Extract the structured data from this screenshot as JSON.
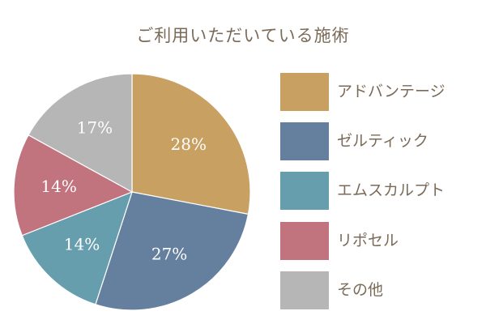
{
  "title": "ご利用いただいている施術",
  "chart_data": {
    "type": "pie",
    "title": "ご利用いただいている施術",
    "categories": [
      "アドバンテージ",
      "ゼルティック",
      "エムスカルプト",
      "リポセル",
      "その他"
    ],
    "values": [
      28,
      27,
      14,
      14,
      17
    ],
    "labels": [
      "28%",
      "27%",
      "14%",
      "14%",
      "17%"
    ],
    "colors": [
      "#c8a062",
      "#657f9e",
      "#669eae",
      "#c1747e",
      "#b5b6b5"
    ],
    "start_angle_deg": 0,
    "direction": "clockwise",
    "legend_position": "right"
  },
  "legend": [
    {
      "label": "アドバンテージ",
      "color": "#c8a062"
    },
    {
      "label": "ゼルティック",
      "color": "#657f9e"
    },
    {
      "label": "エムスカルプト",
      "color": "#669eae"
    },
    {
      "label": "リポセル",
      "color": "#c1747e"
    },
    {
      "label": "その他",
      "color": "#b5b6b5"
    }
  ]
}
